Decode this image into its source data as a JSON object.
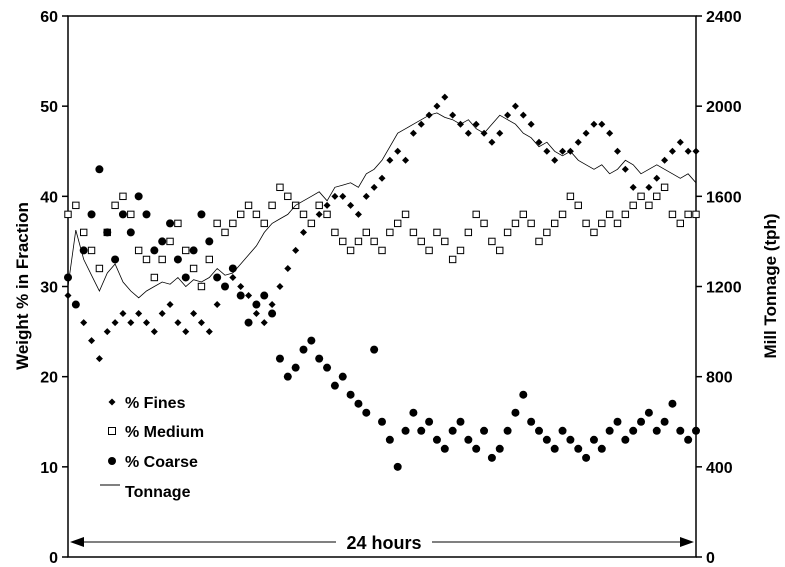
{
  "chart_data": {
    "type": "scatter",
    "title": "",
    "xlabel": "",
    "ylabel": "Weight % in Fraction",
    "y2label": "Mill Tonnage (tph)",
    "xlim": [
      0,
      24
    ],
    "ylim": [
      0,
      60
    ],
    "y2lim": [
      0,
      2400
    ],
    "yticks": [
      "0",
      "10",
      "20",
      "30",
      "40",
      "50",
      "60"
    ],
    "y2ticks": [
      "0",
      "400",
      "800",
      "1200",
      "1600",
      "2000",
      "2400"
    ],
    "grid": false,
    "legend_position": "lower-left",
    "annotation": "24 hours",
    "series": [
      {
        "name": "% Fines",
        "marker": "diamond",
        "axis": "left",
        "x": [
          0.0,
          0.3,
          0.6,
          0.9,
          1.2,
          1.5,
          1.8,
          2.1,
          2.4,
          2.7,
          3.0,
          3.3,
          3.6,
          3.9,
          4.2,
          4.5,
          4.8,
          5.1,
          5.4,
          5.7,
          6.0,
          6.3,
          6.6,
          6.9,
          7.2,
          7.5,
          7.8,
          8.1,
          8.4,
          8.7,
          9.0,
          9.3,
          9.6,
          9.9,
          10.2,
          10.5,
          10.8,
          11.1,
          11.4,
          11.7,
          12.0,
          12.3,
          12.6,
          12.9,
          13.2,
          13.5,
          13.8,
          14.1,
          14.4,
          14.7,
          15.0,
          15.3,
          15.6,
          15.9,
          16.2,
          16.5,
          16.8,
          17.1,
          17.4,
          17.7,
          18.0,
          18.3,
          18.6,
          18.9,
          19.2,
          19.5,
          19.8,
          20.1,
          20.4,
          20.7,
          21.0,
          21.3,
          21.6,
          21.9,
          22.2,
          22.5,
          22.8,
          23.1,
          23.4,
          23.7,
          24.0
        ],
        "values": [
          29,
          28,
          26,
          24,
          22,
          25,
          26,
          27,
          26,
          27,
          26,
          25,
          27,
          28,
          26,
          25,
          27,
          26,
          25,
          28,
          30,
          31,
          30,
          29,
          27,
          26,
          28,
          30,
          32,
          34,
          36,
          37,
          38,
          39,
          40,
          40,
          39,
          38,
          40,
          41,
          42,
          44,
          45,
          44,
          47,
          48,
          49,
          50,
          51,
          49,
          48,
          47,
          48,
          47,
          46,
          47,
          49,
          50,
          49,
          48,
          46,
          45,
          44,
          45,
          45,
          46,
          47,
          48,
          48,
          47,
          45,
          43,
          41,
          40,
          41,
          42,
          44,
          45,
          46,
          45,
          45
        ]
      },
      {
        "name": "% Medium",
        "marker": "square",
        "axis": "left",
        "x": [
          0.0,
          0.3,
          0.6,
          0.9,
          1.2,
          1.5,
          1.8,
          2.1,
          2.4,
          2.7,
          3.0,
          3.3,
          3.6,
          3.9,
          4.2,
          4.5,
          4.8,
          5.1,
          5.4,
          5.7,
          6.0,
          6.3,
          6.6,
          6.9,
          7.2,
          7.5,
          7.8,
          8.1,
          8.4,
          8.7,
          9.0,
          9.3,
          9.6,
          9.9,
          10.2,
          10.5,
          10.8,
          11.1,
          11.4,
          11.7,
          12.0,
          12.3,
          12.6,
          12.9,
          13.2,
          13.5,
          13.8,
          14.1,
          14.4,
          14.7,
          15.0,
          15.3,
          15.6,
          15.9,
          16.2,
          16.5,
          16.8,
          17.1,
          17.4,
          17.7,
          18.0,
          18.3,
          18.6,
          18.9,
          19.2,
          19.5,
          19.8,
          20.1,
          20.4,
          20.7,
          21.0,
          21.3,
          21.6,
          21.9,
          22.2,
          22.5,
          22.8,
          23.1,
          23.4,
          23.7,
          24.0
        ],
        "values": [
          38,
          39,
          36,
          34,
          32,
          36,
          39,
          40,
          38,
          34,
          33,
          31,
          33,
          35,
          37,
          34,
          32,
          30,
          33,
          37,
          36,
          37,
          38,
          39,
          38,
          37,
          39,
          41,
          40,
          39,
          38,
          37,
          39,
          38,
          36,
          35,
          34,
          35,
          36,
          35,
          34,
          36,
          37,
          38,
          36,
          35,
          34,
          36,
          35,
          33,
          34,
          36,
          38,
          37,
          35,
          34,
          36,
          37,
          38,
          37,
          35,
          36,
          37,
          38,
          40,
          39,
          37,
          36,
          37,
          38,
          37,
          38,
          39,
          40,
          39,
          40,
          41,
          38,
          37,
          38,
          38
        ]
      },
      {
        "name": "% Coarse",
        "marker": "circle",
        "axis": "left",
        "x": [
          0.0,
          0.3,
          0.6,
          0.9,
          1.2,
          1.5,
          1.8,
          2.1,
          2.4,
          2.7,
          3.0,
          3.3,
          3.6,
          3.9,
          4.2,
          4.5,
          4.8,
          5.1,
          5.4,
          5.7,
          6.0,
          6.3,
          6.6,
          6.9,
          7.2,
          7.5,
          7.8,
          8.1,
          8.4,
          8.7,
          9.0,
          9.3,
          9.6,
          9.9,
          10.2,
          10.5,
          10.8,
          11.1,
          11.4,
          11.7,
          12.0,
          12.3,
          12.6,
          12.9,
          13.2,
          13.5,
          13.8,
          14.1,
          14.4,
          14.7,
          15.0,
          15.3,
          15.6,
          15.9,
          16.2,
          16.5,
          16.8,
          17.1,
          17.4,
          17.7,
          18.0,
          18.3,
          18.6,
          18.9,
          19.2,
          19.5,
          19.8,
          20.1,
          20.4,
          20.7,
          21.0,
          21.3,
          21.6,
          21.9,
          22.2,
          22.5,
          22.8,
          23.1,
          23.4,
          23.7,
          24.0
        ],
        "values": [
          31,
          28,
          34,
          38,
          43,
          36,
          33,
          38,
          36,
          40,
          38,
          34,
          35,
          37,
          33,
          31,
          34,
          38,
          35,
          31,
          30,
          32,
          29,
          26,
          28,
          29,
          27,
          22,
          20,
          21,
          23,
          24,
          22,
          21,
          19,
          20,
          18,
          17,
          16,
          23,
          15,
          13,
          10,
          14,
          16,
          14,
          15,
          13,
          12,
          14,
          15,
          13,
          12,
          14,
          11,
          12,
          14,
          16,
          18,
          15,
          14,
          13,
          12,
          14,
          13,
          12,
          11,
          13,
          12,
          14,
          15,
          13,
          14,
          15,
          16,
          14,
          15,
          17,
          14,
          13,
          14
        ]
      },
      {
        "name": "Tonnage",
        "marker": "line",
        "axis": "right",
        "x": [
          0.0,
          0.3,
          0.6,
          0.9,
          1.2,
          1.5,
          1.8,
          2.1,
          2.4,
          2.7,
          3.0,
          3.3,
          3.6,
          3.9,
          4.2,
          4.5,
          4.8,
          5.1,
          5.4,
          5.7,
          6.0,
          6.3,
          6.6,
          6.9,
          7.2,
          7.5,
          7.8,
          8.1,
          8.4,
          8.7,
          9.0,
          9.3,
          9.6,
          9.9,
          10.2,
          10.5,
          10.8,
          11.1,
          11.4,
          11.7,
          12.0,
          12.3,
          12.6,
          12.9,
          13.2,
          13.5,
          13.8,
          14.1,
          14.4,
          14.7,
          15.0,
          15.3,
          15.6,
          15.9,
          16.2,
          16.5,
          16.8,
          17.1,
          17.4,
          17.7,
          18.0,
          18.3,
          18.6,
          18.9,
          19.2,
          19.5,
          19.8,
          20.1,
          20.4,
          20.7,
          21.0,
          21.3,
          21.6,
          21.9,
          22.2,
          22.5,
          22.8,
          23.1,
          23.4,
          23.7,
          24.0
        ],
        "values": [
          1200,
          1450,
          1320,
          1250,
          1180,
          1260,
          1300,
          1220,
          1180,
          1150,
          1180,
          1200,
          1220,
          1210,
          1240,
          1200,
          1230,
          1220,
          1240,
          1280,
          1250,
          1260,
          1300,
          1340,
          1380,
          1440,
          1480,
          1500,
          1520,
          1560,
          1580,
          1600,
          1620,
          1580,
          1640,
          1650,
          1660,
          1640,
          1700,
          1720,
          1760,
          1820,
          1880,
          1900,
          1920,
          1940,
          1960,
          1970,
          1950,
          1940,
          1920,
          1940,
          1900,
          1880,
          1920,
          1960,
          1940,
          1920,
          1880,
          1860,
          1820,
          1840,
          1800,
          1780,
          1800,
          1760,
          1740,
          1720,
          1740,
          1700,
          1720,
          1760,
          1740,
          1700,
          1720,
          1740,
          1720,
          1700,
          1680,
          1700,
          1660
        ]
      }
    ]
  }
}
